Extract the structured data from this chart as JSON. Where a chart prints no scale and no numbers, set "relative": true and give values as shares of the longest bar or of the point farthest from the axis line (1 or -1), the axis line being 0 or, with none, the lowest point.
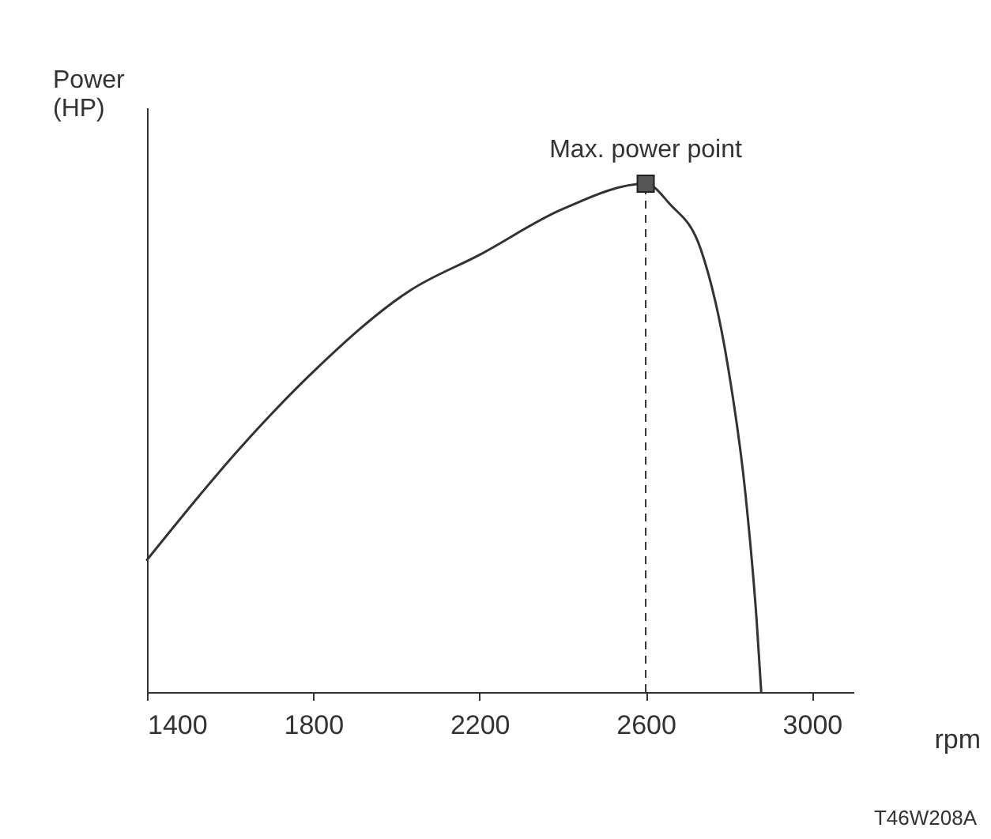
{
  "chart_data": {
    "type": "line",
    "relative": true,
    "xlabel": "rpm",
    "ylabel": "Power (HP)",
    "xlim": [
      1400,
      3100
    ],
    "xticks": [
      1400,
      1800,
      2200,
      2600,
      3000
    ],
    "grid": false,
    "series": [
      {
        "color": "#333333",
        "x": [
          1400,
          1624,
          1800,
          2033,
          2200,
          2400,
          2600,
          2658,
          2733,
          2798,
          2840,
          2867,
          2878
        ],
        "values": [
          0.26,
          0.48,
          0.63,
          0.79,
          0.86,
          0.95,
          1.0,
          0.96,
          0.87,
          0.64,
          0.39,
          0.14,
          0
        ]
      },
      {
        "type": "scatter",
        "color": "#555555",
        "marker": "square",
        "x": [
          2600
        ],
        "values": [
          1.0
        ]
      }
    ],
    "ref_lines": [
      {
        "axis": "x",
        "value": 2600,
        "line_style": "dashed",
        "color": "#333333"
      }
    ],
    "annotations": [
      {
        "text": "Max. power point",
        "x": 2600,
        "y": 1.0
      },
      "T46W208A"
    ]
  }
}
